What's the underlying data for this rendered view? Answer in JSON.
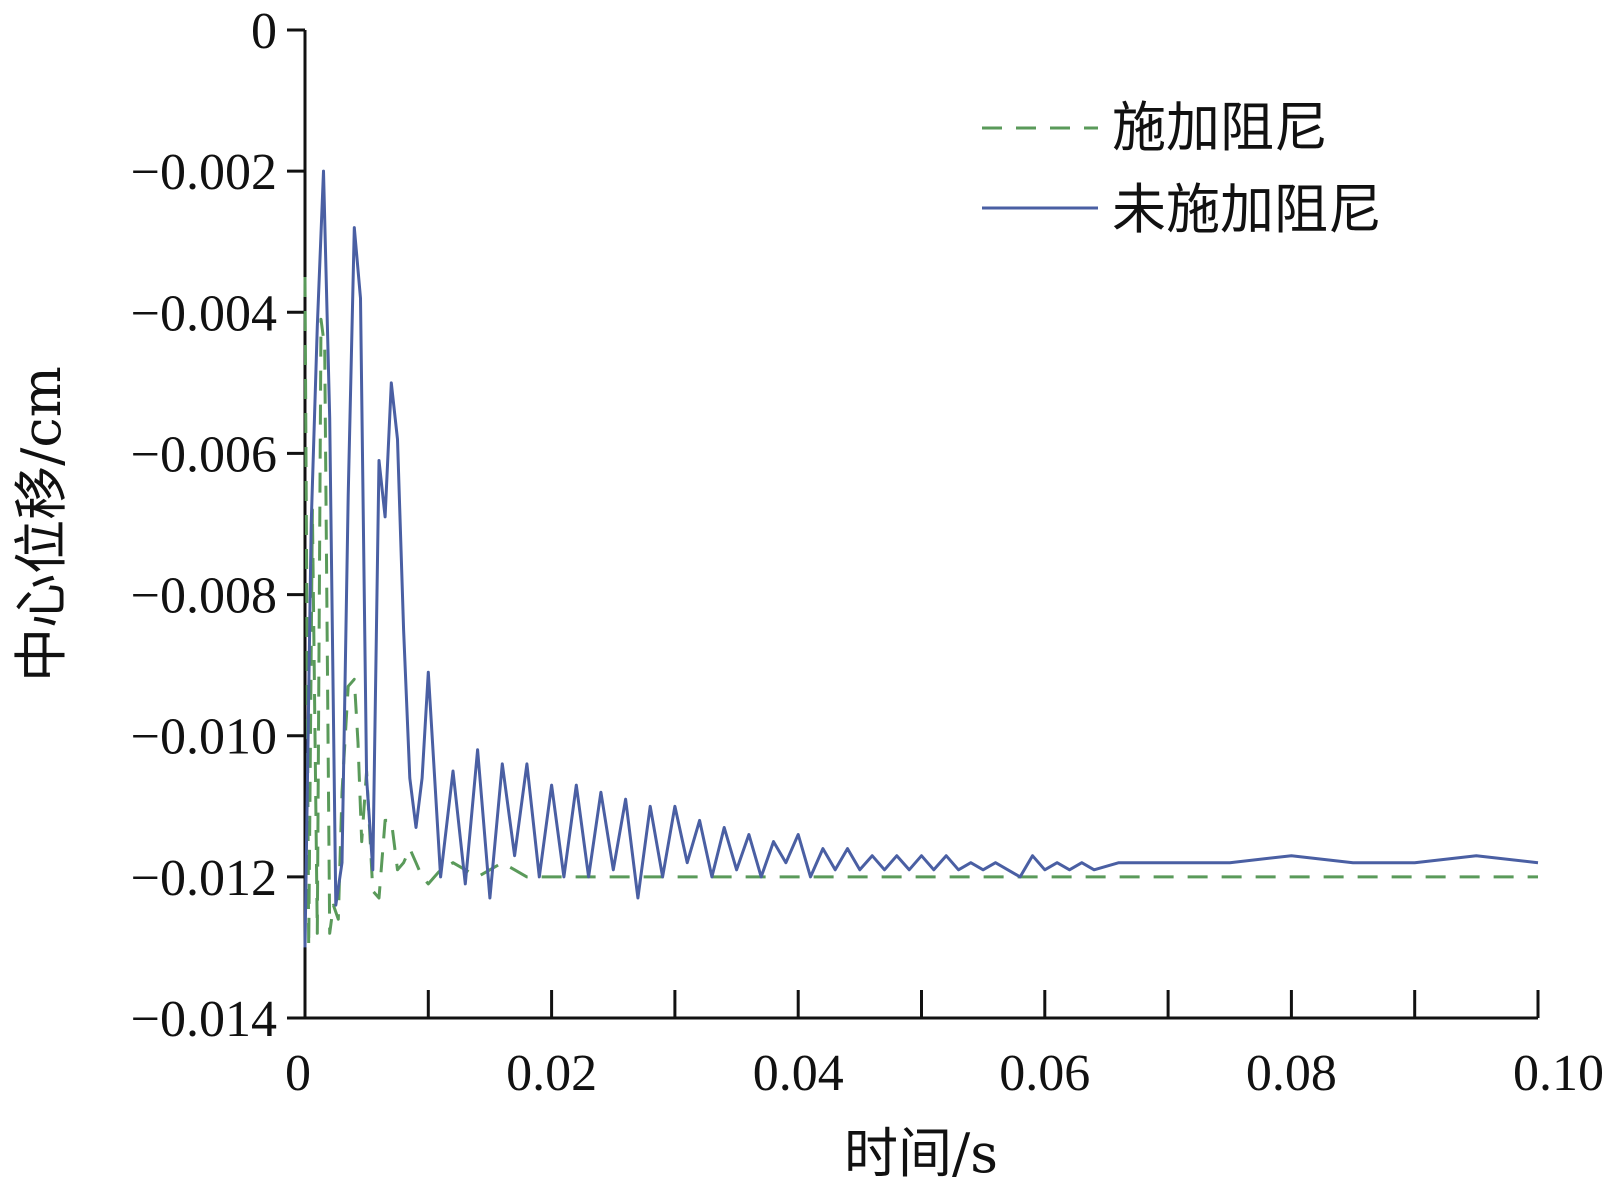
{
  "chart_data": {
    "type": "line",
    "title": "",
    "xlabel": "时间/s",
    "ylabel": "中心位移/cm",
    "xlim": [
      0,
      0.1
    ],
    "ylim": [
      -0.014,
      0
    ],
    "x_ticks": [
      0,
      0.02,
      0.04,
      0.06,
      0.08,
      0.1
    ],
    "x_tick_labels": [
      "0",
      "0.02",
      "0.04",
      "0.06",
      "0.08",
      "0.10"
    ],
    "y_ticks": [
      0,
      -0.002,
      -0.004,
      -0.006,
      -0.008,
      -0.01,
      -0.012,
      -0.014
    ],
    "y_tick_labels": [
      "0",
      "−0.002",
      "−0.004",
      "−0.006",
      "−0.008",
      "−0.010",
      "−0.012",
      "−0.014"
    ],
    "grid": false,
    "legend_position": "top-right",
    "series": [
      {
        "name": "施加阻尼",
        "style": "dashed",
        "color": "#5a9a5a",
        "x": [
          0,
          0.0003,
          0.0006,
          0.001,
          0.0013,
          0.0016,
          0.002,
          0.0023,
          0.0027,
          0.003,
          0.0035,
          0.004,
          0.0043,
          0.0046,
          0.005,
          0.0055,
          0.006,
          0.0065,
          0.007,
          0.0075,
          0.008,
          0.0085,
          0.009,
          0.0095,
          0.01,
          0.011,
          0.012,
          0.013,
          0.014,
          0.015,
          0.016,
          0.017,
          0.018,
          0.019,
          0.02,
          0.025,
          0.03,
          0.04,
          0.05,
          0.06,
          0.07,
          0.08,
          0.09,
          0.1
        ],
        "y": [
          -0.0035,
          -0.013,
          -0.0068,
          -0.0128,
          -0.0041,
          -0.0045,
          -0.0128,
          -0.0124,
          -0.0126,
          -0.0108,
          -0.0093,
          -0.0092,
          -0.0101,
          -0.0115,
          -0.0105,
          -0.0122,
          -0.0123,
          -0.0112,
          -0.0112,
          -0.0119,
          -0.0118,
          -0.0116,
          -0.0118,
          -0.012,
          -0.0121,
          -0.0119,
          -0.0118,
          -0.0119,
          -0.012,
          -0.0119,
          -0.0118,
          -0.0119,
          -0.012,
          -0.012,
          -0.012,
          -0.012,
          -0.012,
          -0.012,
          -0.012,
          -0.012,
          -0.012,
          -0.012,
          -0.012,
          -0.012
        ]
      },
      {
        "name": "未施加阻尼",
        "style": "solid",
        "color": "#4a5fa3",
        "x": [
          0,
          0.0005,
          0.001,
          0.0015,
          0.002,
          0.0025,
          0.003,
          0.0035,
          0.004,
          0.0045,
          0.005,
          0.0055,
          0.006,
          0.0065,
          0.007,
          0.0075,
          0.008,
          0.0085,
          0.009,
          0.0095,
          0.01,
          0.011,
          0.012,
          0.013,
          0.014,
          0.015,
          0.016,
          0.017,
          0.018,
          0.019,
          0.02,
          0.021,
          0.022,
          0.023,
          0.024,
          0.025,
          0.026,
          0.027,
          0.028,
          0.029,
          0.03,
          0.031,
          0.032,
          0.033,
          0.034,
          0.035,
          0.036,
          0.037,
          0.038,
          0.039,
          0.04,
          0.041,
          0.042,
          0.043,
          0.044,
          0.045,
          0.046,
          0.047,
          0.048,
          0.049,
          0.05,
          0.051,
          0.052,
          0.053,
          0.054,
          0.055,
          0.056,
          0.057,
          0.058,
          0.059,
          0.06,
          0.061,
          0.062,
          0.063,
          0.064,
          0.066,
          0.07,
          0.075,
          0.08,
          0.085,
          0.09,
          0.095,
          0.1
        ],
        "y": [
          -0.013,
          -0.007,
          -0.0042,
          -0.002,
          -0.0055,
          -0.0124,
          -0.0118,
          -0.0066,
          -0.0028,
          -0.0038,
          -0.0106,
          -0.0119,
          -0.0061,
          -0.0069,
          -0.005,
          -0.0058,
          -0.0085,
          -0.0106,
          -0.0113,
          -0.0106,
          -0.0091,
          -0.012,
          -0.0105,
          -0.0121,
          -0.0102,
          -0.0123,
          -0.0104,
          -0.0117,
          -0.0104,
          -0.012,
          -0.0107,
          -0.012,
          -0.0107,
          -0.012,
          -0.0108,
          -0.0119,
          -0.0109,
          -0.0123,
          -0.011,
          -0.012,
          -0.011,
          -0.0118,
          -0.0112,
          -0.012,
          -0.0113,
          -0.0119,
          -0.0114,
          -0.012,
          -0.0115,
          -0.0118,
          -0.0114,
          -0.012,
          -0.0116,
          -0.0119,
          -0.0116,
          -0.0119,
          -0.0117,
          -0.0119,
          -0.0117,
          -0.0119,
          -0.0117,
          -0.0119,
          -0.0117,
          -0.0119,
          -0.0118,
          -0.0119,
          -0.0118,
          -0.0119,
          -0.012,
          -0.0117,
          -0.0119,
          -0.0118,
          -0.0119,
          -0.0118,
          -0.0119,
          -0.0118,
          -0.0118,
          -0.0118,
          -0.0117,
          -0.0118,
          -0.0118,
          -0.0117,
          -0.0118
        ]
      }
    ]
  }
}
